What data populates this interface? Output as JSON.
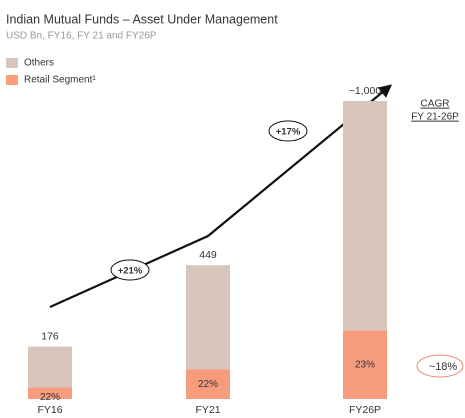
{
  "chart_data": {
    "type": "stacked_bar",
    "title": "Indian Mutual Funds – Asset Under Management",
    "subtitle": "USD Bn, FY16, FY 21 and FY26P",
    "categories": [
      "FY16",
      "FY21",
      "FY26P"
    ],
    "series": [
      {
        "name": "Retail Segment¹",
        "color": "#f79b7d",
        "values": [
          39,
          99,
          230
        ]
      },
      {
        "name": "Others",
        "color": "#d8c6bd",
        "values": [
          137,
          350,
          770
        ]
      }
    ],
    "totals": {
      "values": [
        176,
        449,
        1000
      ],
      "value_labels": [
        "176",
        "449",
        "~1,000"
      ]
    },
    "retail_share": {
      "values": [
        22,
        22,
        23
      ],
      "value_labels": [
        "22%",
        "22%",
        "23%"
      ]
    },
    "growth": {
      "values": [
        21,
        17
      ],
      "value_labels": [
        "+21%",
        "+17%"
      ]
    },
    "cagr_title": [
      "CAGR",
      "FY 21-26P"
    ],
    "cagr": {
      "value": 18,
      "label": "~18%"
    }
  }
}
